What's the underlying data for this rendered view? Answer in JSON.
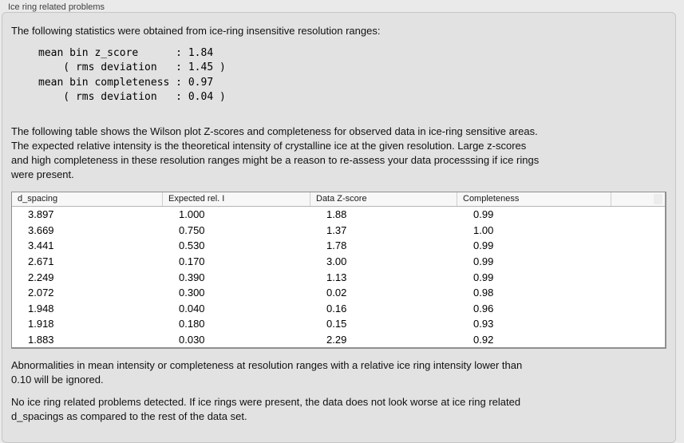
{
  "group": {
    "title": "Ice ring related problems"
  },
  "intro": "The following statistics were obtained from ice-ring insensitive resolution ranges:",
  "stats_block": "mean bin z_score      : 1.84\n    ( rms deviation   : 1.45 )\nmean bin completeness : 0.97\n    ( rms deviation   : 0.04 )",
  "table_description": "The following table shows the Wilson plot Z-scores and completeness for observed data in ice-ring sensitive areas.\nThe expected relative intensity is the theoretical intensity of crystalline ice at the given resolution. Large z-scores\nand high completeness in these resolution ranges might be a reason to re-assess your data processsing if ice rings\nwere present.",
  "table": {
    "headers": [
      "d_spacing",
      "Expected rel. I",
      "Data Z-score",
      "Completeness",
      ""
    ],
    "rows": [
      [
        "3.897",
        "1.000",
        "1.88",
        "0.99"
      ],
      [
        "3.669",
        "0.750",
        "1.37",
        "1.00"
      ],
      [
        "3.441",
        "0.530",
        "1.78",
        "0.99"
      ],
      [
        "2.671",
        "0.170",
        "3.00",
        "0.99"
      ],
      [
        "2.249",
        "0.390",
        "1.13",
        "0.99"
      ],
      [
        "2.072",
        "0.300",
        "0.02",
        "0.98"
      ],
      [
        "1.948",
        "0.040",
        "0.16",
        "0.96"
      ],
      [
        "1.918",
        "0.180",
        "0.15",
        "0.93"
      ],
      [
        "1.883",
        "0.030",
        "2.29",
        "0.92"
      ]
    ]
  },
  "note_ignore": "Abnormalities in mean intensity or completeness at resolution ranges with a relative ice ring intensity lower than\n0.10 will be ignored.",
  "conclusion": "No ice ring related problems detected. If ice rings were present, the data does not look worse at ice ring related\nd_spacings as compared to the rest of the data set."
}
